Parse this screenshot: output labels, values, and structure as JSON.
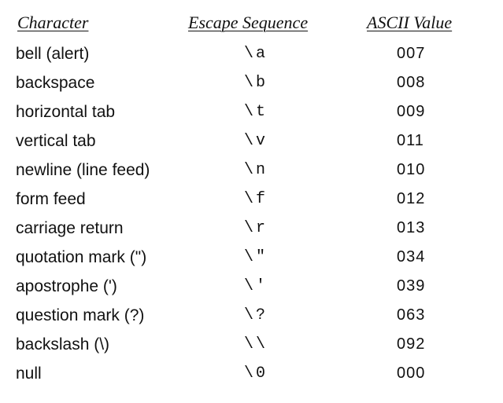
{
  "headers": {
    "character": "Character",
    "escape_sequence": "Escape Sequence",
    "ascii_value": "ASCII Value"
  },
  "rows": [
    {
      "character": "bell (alert)",
      "escape": "\\a",
      "ascii": "007"
    },
    {
      "character": "backspace",
      "escape": "\\b",
      "ascii": "008"
    },
    {
      "character": "horizontal tab",
      "escape": "\\t",
      "ascii": "009"
    },
    {
      "character": "vertical tab",
      "escape": "\\v",
      "ascii": "011"
    },
    {
      "character": "newline (line feed)",
      "escape": "\\n",
      "ascii": "010"
    },
    {
      "character": "form feed",
      "escape": "\\f",
      "ascii": "012"
    },
    {
      "character": "carriage return",
      "escape": "\\r",
      "ascii": "013"
    },
    {
      "character": "quotation mark (\")",
      "escape": "\\\"",
      "ascii": "034"
    },
    {
      "character": "apostrophe (')",
      "escape": "\\'",
      "ascii": "039"
    },
    {
      "character": "question mark (?)",
      "escape": "\\?",
      "ascii": "063"
    },
    {
      "character": "backslash (\\)",
      "escape": "\\\\",
      "ascii": "092"
    },
    {
      "character": "null",
      "escape": "\\0",
      "ascii": "000"
    }
  ]
}
